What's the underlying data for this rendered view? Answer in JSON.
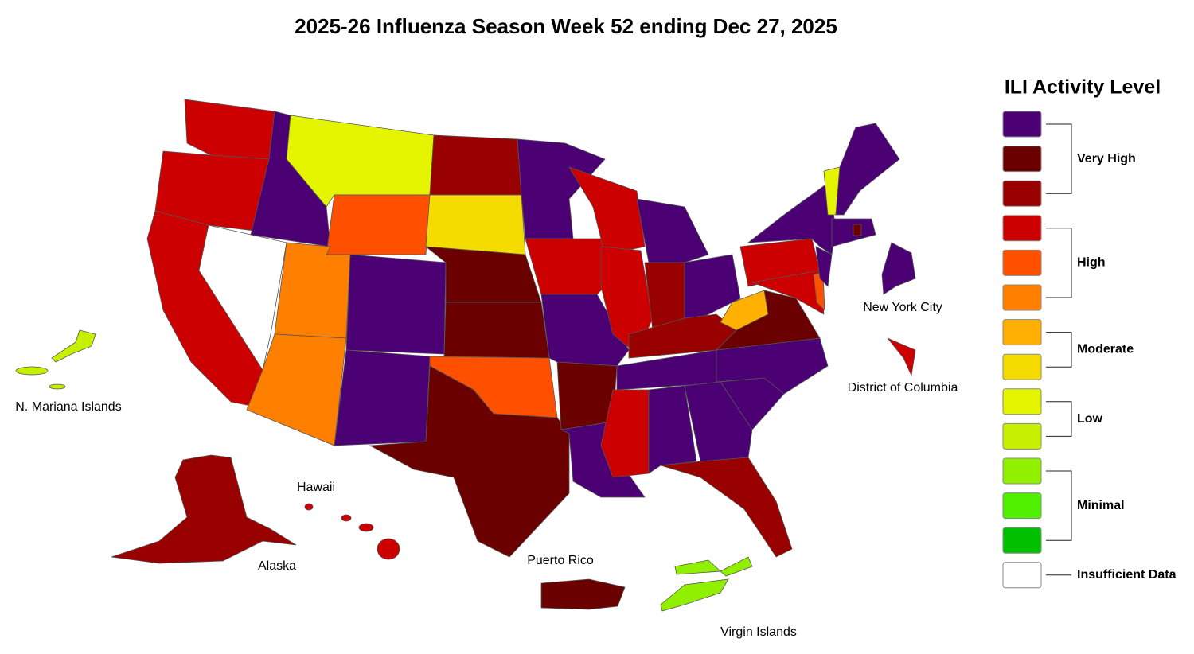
{
  "title": "2025-26 Influenza Season Week 52 ending Dec 27, 2025",
  "legend": {
    "title": "ILI Activity Level",
    "colors": [
      "#4b0073",
      "#6b0000",
      "#990000",
      "#cc0000",
      "#ff5000",
      "#ff8000",
      "#ffb000",
      "#f5dc00",
      "#e5f500",
      "#c5f000",
      "#90f000",
      "#50f000",
      "#00c000",
      "#ffffff"
    ],
    "groups": [
      "Very High",
      "High",
      "Moderate",
      "Low",
      "Minimal",
      "Insufficient Data"
    ]
  },
  "labels": [
    "New York City",
    "District of Columbia",
    "N. Mariana Islands",
    "Hawaii",
    "Alaska",
    "Puerto Rico",
    "Virgin Islands"
  ]
}
